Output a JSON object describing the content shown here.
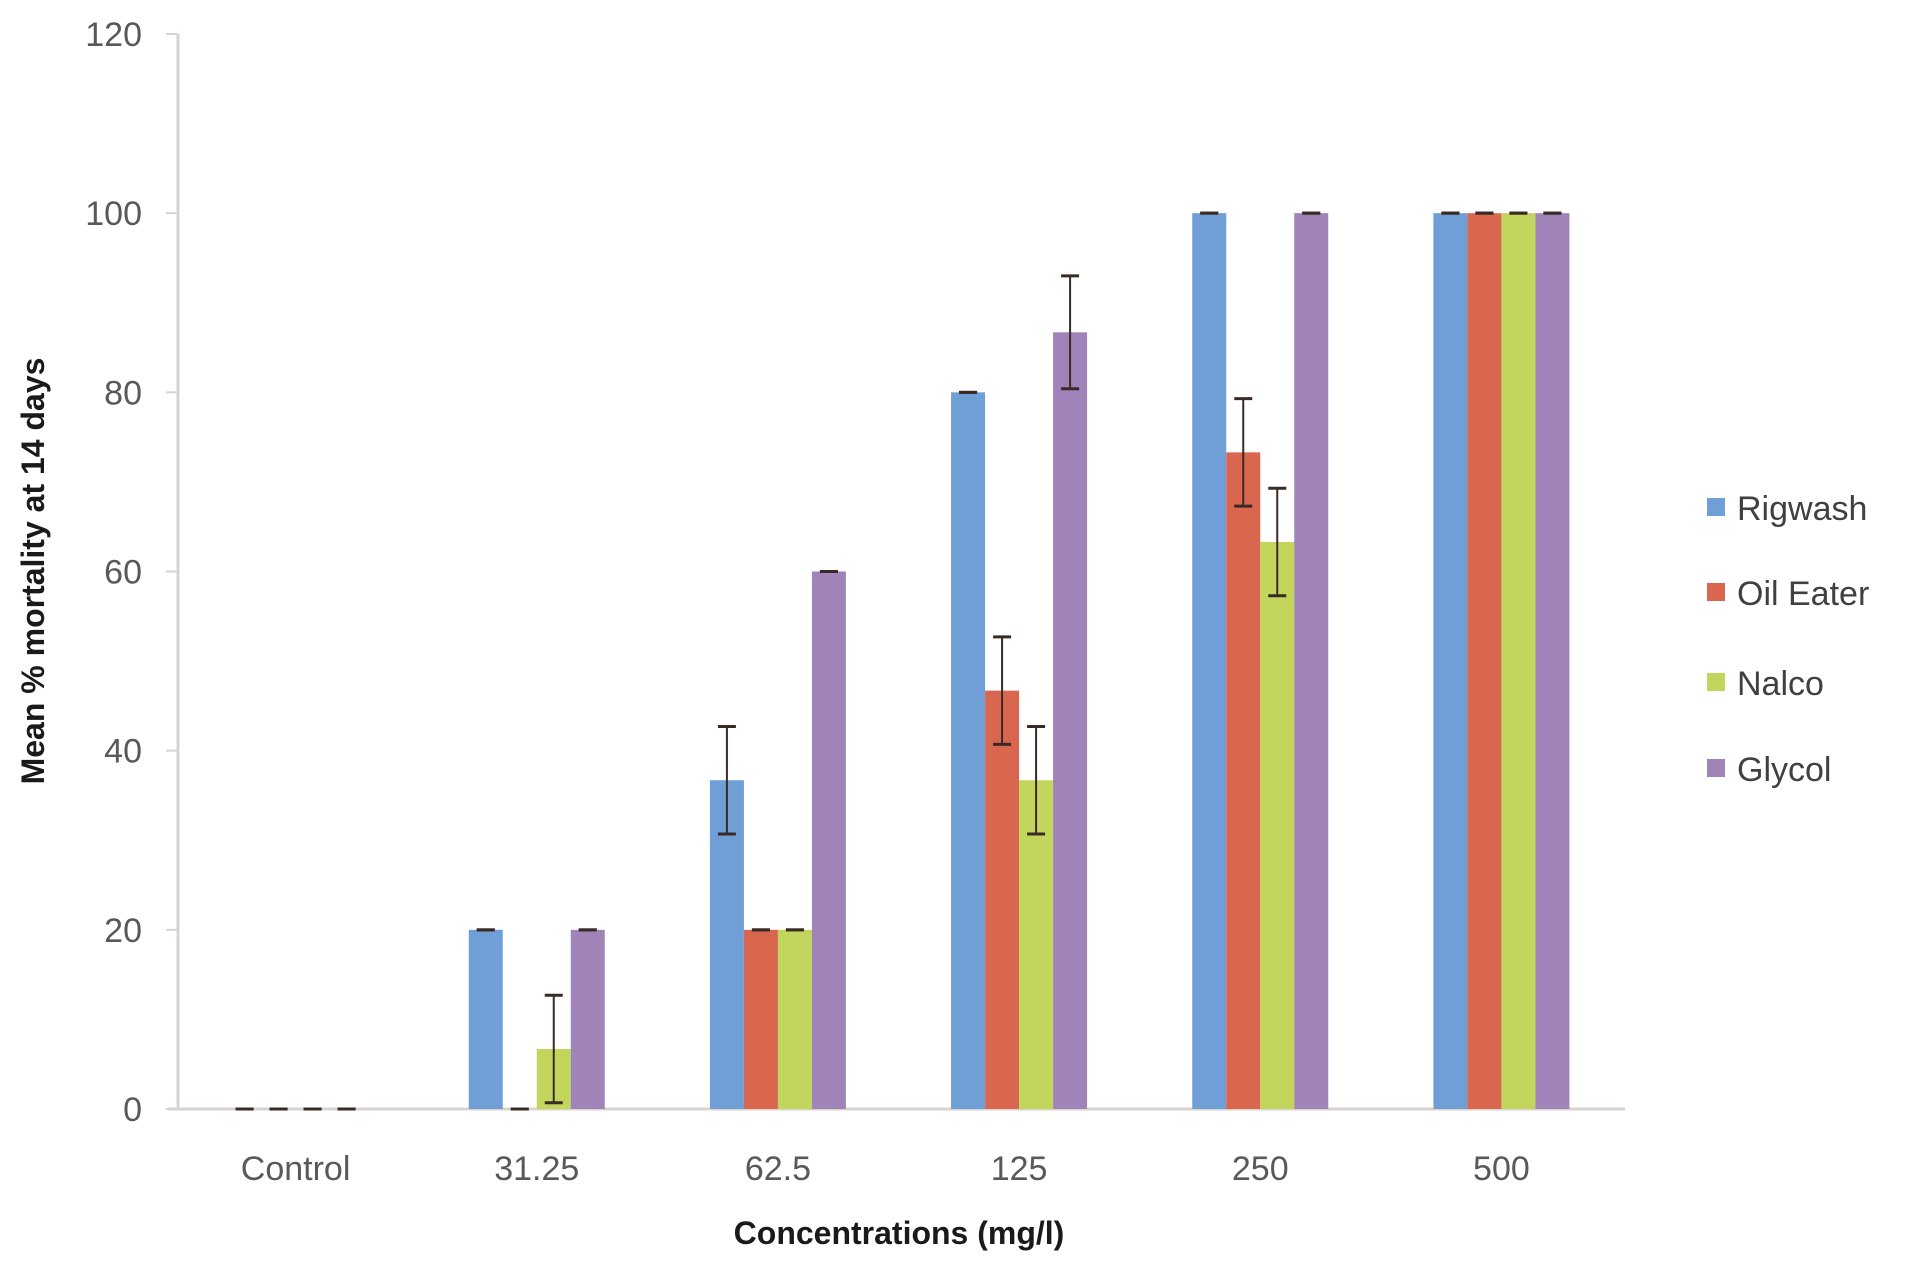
{
  "chart_data": {
    "type": "bar",
    "title": "",
    "xlabel": "Concentrations (mg/l)",
    "ylabel": "Mean % mortality at 14 days",
    "ylim": [
      0,
      120
    ],
    "yticks": [
      0,
      20,
      40,
      60,
      80,
      100,
      120
    ],
    "categories": [
      "Control",
      "31.25",
      "62.5",
      "125",
      "250",
      "500"
    ],
    "legend_position": "right",
    "grid": false,
    "series": [
      {
        "name": "Rigwash",
        "color": "#6f9fd6",
        "values": [
          0,
          20,
          36.7,
          80,
          100,
          100
        ],
        "errors": [
          0,
          0,
          6,
          0,
          0,
          0
        ]
      },
      {
        "name": "Oil Eater",
        "color": "#d9664f",
        "values": [
          0,
          0,
          20,
          46.7,
          73.3,
          100
        ],
        "errors": [
          0,
          0,
          0,
          6,
          6,
          0
        ]
      },
      {
        "name": "Nalco",
        "color": "#c2d65e",
        "values": [
          0,
          6.7,
          20,
          36.7,
          63.3,
          100
        ],
        "errors": [
          0,
          6,
          0,
          6,
          6,
          0
        ]
      },
      {
        "name": "Glycol",
        "color": "#a083b9",
        "values": [
          0,
          20,
          60,
          86.7,
          100,
          100
        ],
        "errors": [
          0,
          0,
          0,
          6.3,
          0,
          0
        ]
      }
    ]
  }
}
